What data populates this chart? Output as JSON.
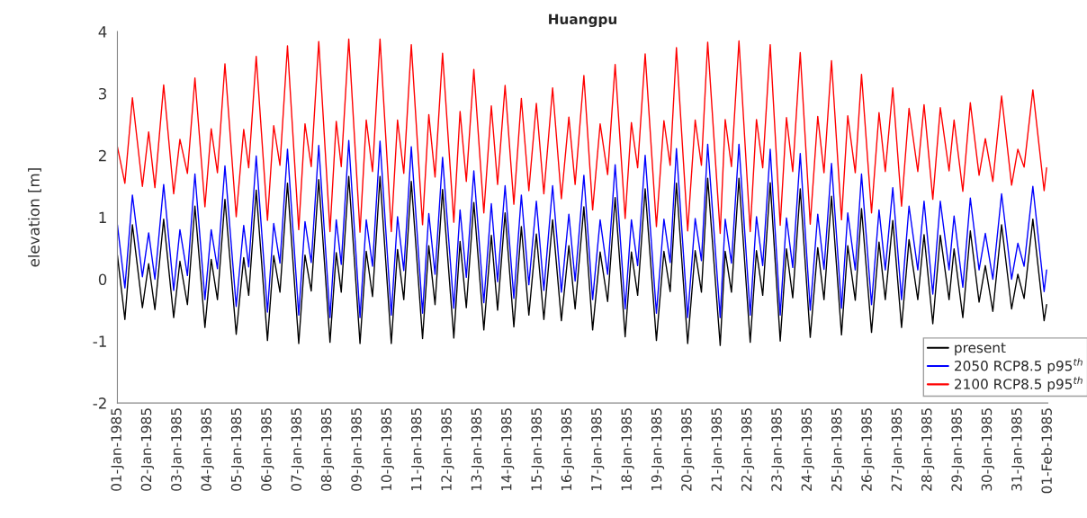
{
  "chart_data": {
    "type": "line",
    "title": "Huangpu",
    "ylabel": "elevation [m]",
    "x": [
      "1985-01-01T00:00",
      "1985-01-01T06:00",
      "1985-01-01T12:00",
      "1985-01-01T20:00",
      "1985-01-02T01:00",
      "1985-01-02T06:00",
      "1985-01-02T13:00",
      "1985-01-02T21:00",
      "1985-01-03T02:00",
      "1985-01-03T08:00",
      "1985-01-03T14:00",
      "1985-01-03T22:00",
      "1985-01-04T03:00",
      "1985-01-04T08:00",
      "1985-01-04T14:00",
      "1985-01-04T23:00",
      "1985-01-05T05:00",
      "1985-01-05T09:00",
      "1985-01-05T15:00",
      "1985-01-06T00:00",
      "1985-01-06T05:00",
      "1985-01-06T10:00",
      "1985-01-06T16:00",
      "1985-01-07T01:00",
      "1985-01-07T06:00",
      "1985-01-07T11:00",
      "1985-01-07T17:00",
      "1985-01-08T02:00",
      "1985-01-08T07:00",
      "1985-01-08T11:00",
      "1985-01-08T17:00",
      "1985-01-09T02:00",
      "1985-01-09T07:00",
      "1985-01-09T12:00",
      "1985-01-09T18:00",
      "1985-01-10T03:00",
      "1985-01-10T08:00",
      "1985-01-10T13:00",
      "1985-01-10T19:00",
      "1985-01-11T04:00",
      "1985-01-11T09:00",
      "1985-01-11T14:00",
      "1985-01-11T20:00",
      "1985-01-12T05:00",
      "1985-01-12T10:00",
      "1985-01-12T15:00",
      "1985-01-12T21:00",
      "1985-01-13T05:00",
      "1985-01-13T11:00",
      "1985-01-13T16:00",
      "1985-01-13T22:00",
      "1985-01-14T05:00",
      "1985-01-14T11:00",
      "1985-01-14T17:00",
      "1985-01-14T23:00",
      "1985-01-15T05:00",
      "1985-01-15T12:00",
      "1985-01-15T19:00",
      "1985-01-16T01:00",
      "1985-01-16T06:00",
      "1985-01-16T13:00",
      "1985-01-16T20:00",
      "1985-01-17T02:00",
      "1985-01-17T08:00",
      "1985-01-17T14:00",
      "1985-01-17T22:00",
      "1985-01-18T03:00",
      "1985-01-18T08:00",
      "1985-01-18T14:00",
      "1985-01-18T23:00",
      "1985-01-19T05:00",
      "1985-01-19T10:00",
      "1985-01-19T15:00",
      "1985-01-20T00:00",
      "1985-01-20T06:00",
      "1985-01-20T11:00",
      "1985-01-20T16:00",
      "1985-01-21T02:00",
      "1985-01-21T06:00",
      "1985-01-21T11:00",
      "1985-01-21T17:00",
      "1985-01-22T02:00",
      "1985-01-22T07:00",
      "1985-01-22T12:00",
      "1985-01-22T18:00",
      "1985-01-23T02:00",
      "1985-01-23T07:00",
      "1985-01-23T12:00",
      "1985-01-23T18:00",
      "1985-01-24T02:00",
      "1985-01-24T08:00",
      "1985-01-24T13:00",
      "1985-01-24T19:00",
      "1985-01-25T03:00",
      "1985-01-25T08:00",
      "1985-01-25T14:00",
      "1985-01-25T19:00",
      "1985-01-26T03:00",
      "1985-01-26T09:00",
      "1985-01-26T14:00",
      "1985-01-26T20:00",
      "1985-01-27T03:00",
      "1985-01-27T09:00",
      "1985-01-27T16:00",
      "1985-01-27T21:00",
      "1985-01-28T04:00",
      "1985-01-28T10:00",
      "1985-01-28T17:00",
      "1985-01-28T21:00",
      "1985-01-29T04:00",
      "1985-01-29T10:00",
      "1985-01-29T17:00",
      "1985-01-29T22:00",
      "1985-01-30T04:00",
      "1985-01-30T11:00",
      "1985-01-30T19:00",
      "1985-01-31T00:00",
      "1985-01-31T05:00",
      "1985-01-31T12:00",
      "1985-01-31T21:00",
      "1985-01-31T23:00"
    ],
    "series": [
      {
        "name": "present",
        "color": "#000000",
        "values": [
          0.39,
          -0.65,
          0.88,
          -0.46,
          0.25,
          -0.49,
          0.97,
          -0.62,
          0.29,
          -0.41,
          1.18,
          -0.78,
          0.32,
          -0.33,
          1.29,
          -0.89,
          0.35,
          -0.26,
          1.44,
          -0.99,
          0.38,
          -0.21,
          1.55,
          -1.04,
          0.39,
          -0.19,
          1.61,
          -1.02,
          0.43,
          -0.21,
          1.66,
          -1.04,
          0.45,
          -0.28,
          1.66,
          -1.04,
          0.48,
          -0.33,
          1.58,
          -0.96,
          0.54,
          -0.41,
          1.45,
          -0.95,
          0.61,
          -0.46,
          1.24,
          -0.82,
          0.71,
          -0.5,
          1.07,
          -0.77,
          0.85,
          -0.58,
          0.73,
          -0.65,
          0.96,
          -0.67,
          0.54,
          -0.48,
          1.17,
          -0.82,
          0.44,
          -0.36,
          1.32,
          -0.93,
          0.44,
          -0.26,
          1.46,
          -0.99,
          0.45,
          -0.2,
          1.55,
          -1.04,
          0.46,
          -0.21,
          1.63,
          -1.07,
          0.45,
          -0.21,
          1.63,
          -1.02,
          0.46,
          -0.26,
          1.56,
          -1.0,
          0.49,
          -0.3,
          1.46,
          -0.94,
          0.51,
          -0.33,
          1.34,
          -0.9,
          0.54,
          -0.34,
          1.14,
          -0.86,
          0.6,
          -0.33,
          0.95,
          -0.78,
          0.64,
          -0.33,
          0.72,
          -0.72,
          0.71,
          -0.33,
          0.49,
          -0.62,
          0.78,
          -0.37,
          0.22,
          -0.52,
          0.88,
          -0.48,
          0.08,
          -0.31,
          0.97,
          -0.67,
          -0.41
        ]
      },
      {
        "name": "2050 RCP8.5 p95$^{th}$",
        "color": "#0000ff",
        "values": [
          0.88,
          -0.14,
          1.36,
          0.04,
          0.75,
          0.0,
          1.53,
          -0.18,
          0.8,
          0.06,
          1.7,
          -0.33,
          0.8,
          0.17,
          1.83,
          -0.44,
          0.87,
          0.2,
          1.99,
          -0.53,
          0.9,
          0.26,
          2.1,
          -0.58,
          0.93,
          0.27,
          2.16,
          -0.62,
          0.96,
          0.24,
          2.24,
          -0.62,
          0.96,
          0.21,
          2.23,
          -0.58,
          1.01,
          0.14,
          2.14,
          -0.55,
          1.06,
          0.08,
          1.97,
          -0.47,
          1.12,
          0.03,
          1.75,
          -0.38,
          1.22,
          -0.04,
          1.51,
          -0.31,
          1.36,
          -0.09,
          1.26,
          -0.18,
          1.51,
          -0.21,
          1.05,
          -0.03,
          1.68,
          -0.33,
          0.96,
          0.08,
          1.85,
          -0.48,
          0.96,
          0.22,
          2.0,
          -0.55,
          0.97,
          0.27,
          2.11,
          -0.62,
          0.98,
          0.3,
          2.18,
          -0.62,
          0.97,
          0.26,
          2.18,
          -0.58,
          1.01,
          0.22,
          2.1,
          -0.58,
          0.99,
          0.19,
          2.03,
          -0.5,
          1.05,
          0.16,
          1.87,
          -0.47,
          1.07,
          0.15,
          1.7,
          -0.41,
          1.12,
          0.15,
          1.48,
          -0.33,
          1.18,
          0.15,
          1.26,
          -0.24,
          1.26,
          0.15,
          1.02,
          -0.13,
          1.31,
          0.15,
          0.74,
          0.0,
          1.38,
          0.0,
          0.58,
          0.21,
          1.5,
          -0.2,
          0.15
        ]
      },
      {
        "name": "2100 RCP8.5 p95$^{th}$",
        "color": "#ff0000",
        "values": [
          2.14,
          1.55,
          2.93,
          1.5,
          2.38,
          1.48,
          3.14,
          1.38,
          2.26,
          1.71,
          3.25,
          1.17,
          2.43,
          1.72,
          3.48,
          1.01,
          2.42,
          1.8,
          3.6,
          0.95,
          2.48,
          1.84,
          3.77,
          0.8,
          2.51,
          1.82,
          3.84,
          0.77,
          2.55,
          1.82,
          3.88,
          0.76,
          2.57,
          1.74,
          3.88,
          0.77,
          2.57,
          1.71,
          3.79,
          0.88,
          2.66,
          1.65,
          3.65,
          0.92,
          2.71,
          1.58,
          3.39,
          1.07,
          2.8,
          1.53,
          3.13,
          1.21,
          2.92,
          1.43,
          2.84,
          1.38,
          3.09,
          1.3,
          2.62,
          1.53,
          3.29,
          1.12,
          2.51,
          1.69,
          3.47,
          0.98,
          2.53,
          1.8,
          3.64,
          0.85,
          2.56,
          1.84,
          3.74,
          0.78,
          2.57,
          1.84,
          3.83,
          0.74,
          2.58,
          1.82,
          3.85,
          0.77,
          2.58,
          1.8,
          3.79,
          0.87,
          2.61,
          1.74,
          3.66,
          0.89,
          2.63,
          1.72,
          3.53,
          0.96,
          2.64,
          1.72,
          3.31,
          1.07,
          2.69,
          1.74,
          3.09,
          1.18,
          2.76,
          1.74,
          2.82,
          1.29,
          2.77,
          1.75,
          2.57,
          1.42,
          2.85,
          1.68,
          2.27,
          1.58,
          2.96,
          1.52,
          2.1,
          1.81,
          3.06,
          1.43,
          1.8
        ]
      }
    ],
    "xlim": [
      "1985-01-01",
      "1985-02-01"
    ],
    "xticks": [
      {
        "value": "1985-01-01",
        "label": "01-Jan-1985"
      },
      {
        "value": "1985-01-02",
        "label": "02-Jan-1985"
      },
      {
        "value": "1985-01-03",
        "label": "03-Jan-1985"
      },
      {
        "value": "1985-01-04",
        "label": "04-Jan-1985"
      },
      {
        "value": "1985-01-05",
        "label": "05-Jan-1985"
      },
      {
        "value": "1985-01-06",
        "label": "06-Jan-1985"
      },
      {
        "value": "1985-01-07",
        "label": "07-Jan-1985"
      },
      {
        "value": "1985-01-08",
        "label": "08-Jan-1985"
      },
      {
        "value": "1985-01-09",
        "label": "09-Jan-1985"
      },
      {
        "value": "1985-01-10",
        "label": "10-Jan-1985"
      },
      {
        "value": "1985-01-11",
        "label": "11-Jan-1985"
      },
      {
        "value": "1985-01-12",
        "label": "12-Jan-1985"
      },
      {
        "value": "1985-01-13",
        "label": "13-Jan-1985"
      },
      {
        "value": "1985-01-14",
        "label": "14-Jan-1985"
      },
      {
        "value": "1985-01-15",
        "label": "15-Jan-1985"
      },
      {
        "value": "1985-01-16",
        "label": "16-Jan-1985"
      },
      {
        "value": "1985-01-17",
        "label": "17-Jan-1985"
      },
      {
        "value": "1985-01-18",
        "label": "18-Jan-1985"
      },
      {
        "value": "1985-01-19",
        "label": "19-Jan-1985"
      },
      {
        "value": "1985-01-20",
        "label": "20-Jan-1985"
      },
      {
        "value": "1985-01-21",
        "label": "21-Jan-1985"
      },
      {
        "value": "1985-01-22",
        "label": "22-Jan-1985"
      },
      {
        "value": "1985-01-23",
        "label": "23-Jan-1985"
      },
      {
        "value": "1985-01-24",
        "label": "24-Jan-1985"
      },
      {
        "value": "1985-01-25",
        "label": "25-Jan-1985"
      },
      {
        "value": "1985-01-26",
        "label": "26-Jan-1985"
      },
      {
        "value": "1985-01-27",
        "label": "27-Jan-1985"
      },
      {
        "value": "1985-01-28",
        "label": "28-Jan-1985"
      },
      {
        "value": "1985-01-29",
        "label": "29-Jan-1985"
      },
      {
        "value": "1985-01-30",
        "label": "30-Jan-1985"
      },
      {
        "value": "1985-01-31",
        "label": "31-Jan-1985"
      },
      {
        "value": "1985-02-01",
        "label": "01-Feb-1985"
      }
    ],
    "ylim": [
      -2,
      4
    ],
    "yticks": [
      -2,
      -1,
      0,
      1,
      2,
      3,
      4
    ],
    "grid": false,
    "legend": "bottom right",
    "marker": "none",
    "line_style": "solid"
  }
}
